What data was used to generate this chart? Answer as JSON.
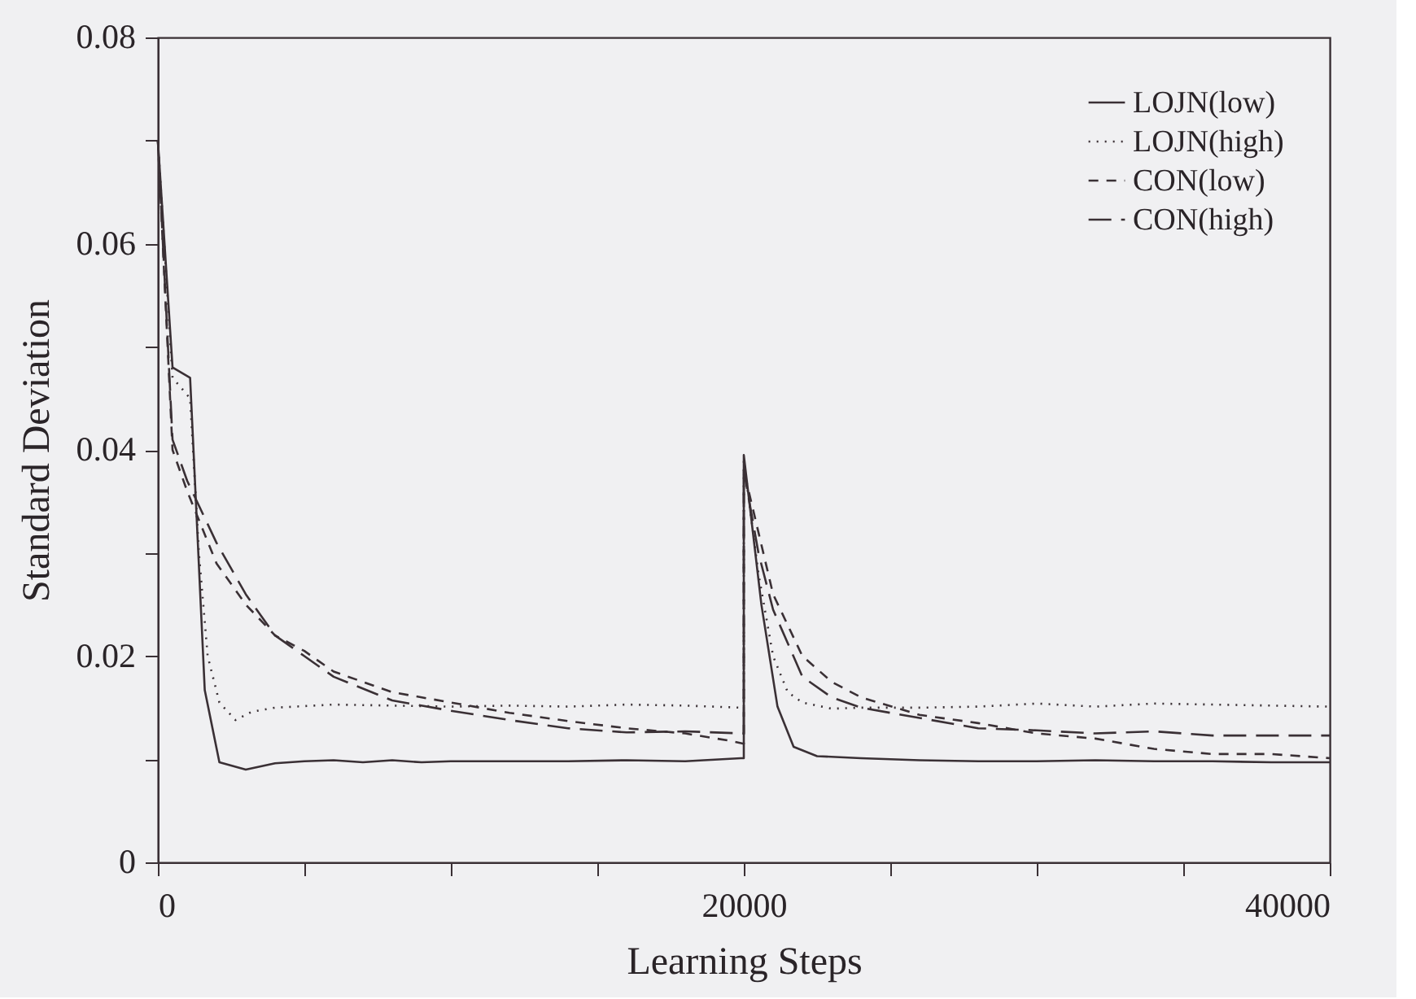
{
  "chart_data": {
    "type": "line",
    "xlabel": "Learning Steps",
    "ylabel": "Standard Deviation",
    "xlim": [
      0,
      40000
    ],
    "ylim": [
      0,
      0.08
    ],
    "xticks": [
      0,
      {
        "value": 5000,
        "label": null
      },
      {
        "value": 10000,
        "label": null
      },
      {
        "value": 15000,
        "label": null
      },
      20000,
      {
        "value": 25000,
        "label": null
      },
      {
        "value": 30000,
        "label": null
      },
      {
        "value": 35000,
        "label": null
      },
      40000
    ],
    "yticks": [
      0,
      {
        "value": 0.01,
        "label": null
      },
      0.02,
      {
        "value": 0.03,
        "label": null
      },
      0.04,
      {
        "value": 0.05,
        "label": null
      },
      0.06,
      {
        "value": 0.07,
        "label": null
      },
      0.08
    ],
    "legend": "top right",
    "grid": false,
    "marker": "none",
    "series": [
      {
        "name": "LOJN(low)",
        "color": "#3a3035",
        "line_style": "solid",
        "x": [
          0,
          500,
          1100,
          1600,
          2100,
          3000,
          4000,
          5000,
          6000,
          7000,
          8000,
          9000,
          10000,
          12000,
          14000,
          16000,
          18000,
          19900,
          20000,
          20000,
          20600,
          21150,
          21700,
          22500,
          24000,
          26000,
          28000,
          30000,
          32000,
          34000,
          36000,
          38000,
          40000
        ],
        "values": [
          0.07,
          0.048,
          0.047,
          0.0167,
          0.0097,
          0.009,
          0.0096,
          0.0098,
          0.0099,
          0.0097,
          0.0099,
          0.0097,
          0.0098,
          0.0098,
          0.0098,
          0.0099,
          0.0098,
          0.0101,
          0.0101,
          0.0395,
          0.025,
          0.0151,
          0.0112,
          0.0103,
          0.0101,
          0.0099,
          0.0098,
          0.0098,
          0.0099,
          0.0098,
          0.0098,
          0.0097,
          0.0097
        ]
      },
      {
        "name": "LOJN(high)",
        "color": "#3a3035",
        "line_style": "dotted",
        "x": [
          0,
          500,
          1100,
          1400,
          1700,
          2100,
          2650,
          3200,
          4000,
          6000,
          8000,
          10000,
          12000,
          14000,
          16000,
          18000,
          19900,
          20000,
          20000,
          20500,
          21000,
          21500,
          22000,
          23000,
          24000,
          26000,
          28000,
          30000,
          32000,
          34000,
          36000,
          38000,
          40000
        ],
        "values": [
          0.07,
          0.047,
          0.045,
          0.03,
          0.02,
          0.0155,
          0.0138,
          0.0146,
          0.015,
          0.0153,
          0.0152,
          0.0151,
          0.0152,
          0.0151,
          0.0153,
          0.0152,
          0.015,
          0.015,
          0.039,
          0.028,
          0.02,
          0.0165,
          0.0155,
          0.0149,
          0.015,
          0.015,
          0.0151,
          0.0154,
          0.0151,
          0.0154,
          0.0153,
          0.0152,
          0.0151
        ]
      },
      {
        "name": "CON(low)",
        "color": "#3a3035",
        "line_style": "dashed",
        "x": [
          0,
          500,
          1000,
          2000,
          3000,
          4000,
          5000,
          6000,
          8000,
          10000,
          12000,
          14000,
          16000,
          18000,
          19500,
          20000,
          20000,
          20500,
          21000,
          22000,
          23000,
          24000,
          26000,
          28000,
          30000,
          32000,
          34000,
          36000,
          38000,
          40000
        ],
        "values": [
          0.07,
          0.04,
          0.036,
          0.029,
          0.025,
          0.022,
          0.0205,
          0.0185,
          0.0165,
          0.0155,
          0.0145,
          0.0137,
          0.013,
          0.0125,
          0.0118,
          0.0115,
          0.038,
          0.032,
          0.026,
          0.02,
          0.0175,
          0.016,
          0.0143,
          0.0135,
          0.0125,
          0.012,
          0.011,
          0.0105,
          0.0105,
          0.0101
        ]
      },
      {
        "name": "CON(high)",
        "color": "#3a3035",
        "line_style": "longdash",
        "x": [
          0,
          500,
          1000,
          2000,
          3000,
          4000,
          5000,
          6000,
          8000,
          10000,
          12000,
          14000,
          16000,
          18000,
          20000,
          20000,
          20500,
          21000,
          22000,
          23000,
          24000,
          26000,
          28000,
          30000,
          32000,
          34000,
          36000,
          38000,
          40000
        ],
        "values": [
          0.07,
          0.041,
          0.037,
          0.031,
          0.026,
          0.022,
          0.02,
          0.018,
          0.0157,
          0.0147,
          0.0138,
          0.013,
          0.0126,
          0.0127,
          0.0125,
          0.038,
          0.03,
          0.0245,
          0.018,
          0.016,
          0.015,
          0.014,
          0.013,
          0.0128,
          0.0125,
          0.0127,
          0.0123,
          0.0123,
          0.0123
        ]
      }
    ]
  }
}
